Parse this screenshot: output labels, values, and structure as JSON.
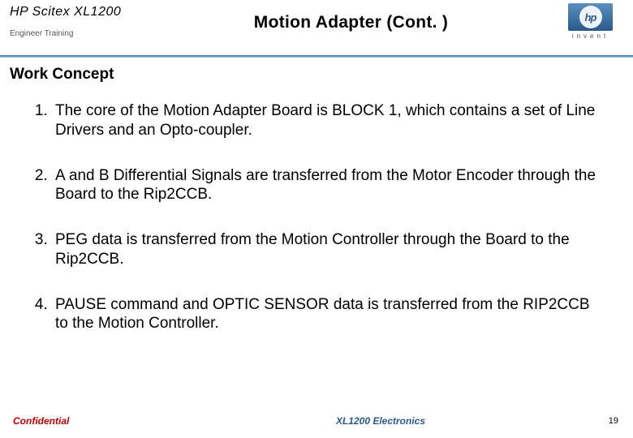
{
  "brand": {
    "text": "HP Scitex XL1200",
    "subtitle": "Engineer Training"
  },
  "logo": {
    "letters": "hp",
    "tag": "invent"
  },
  "slide": {
    "title": "Motion Adapter (Cont. )",
    "section_title": "Work Concept"
  },
  "items": [
    "The core of the Motion Adapter Board is BLOCK 1, which contains a set of Line Drivers and an Opto-coupler.",
    "A and B Differential Signals are transferred from the Motor Encoder through the Board to the Rip2CCB.",
    "PEG data is transferred from the Motion Controller through the Board to the Rip2CCB.",
    "PAUSE command and OPTIC SENSOR data is transferred from the RIP2CCB to the Motion Controller."
  ],
  "footer": {
    "left": "Confidential",
    "center": "XL1200 Electronics",
    "page": "19"
  },
  "colors": {
    "divider_top": "#3a6a9a",
    "footer_left": "#c00000",
    "footer_center": "#2a5a8a"
  }
}
